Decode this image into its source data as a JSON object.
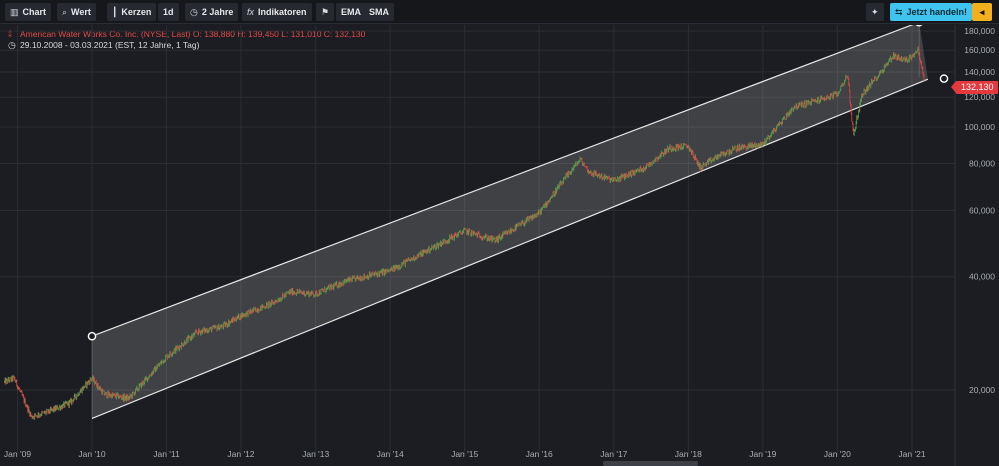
{
  "toolbar": {
    "chart": {
      "label": "Chart",
      "icon": "bar-chart-icon"
    },
    "value": {
      "label": "Wert",
      "icon": "search-icon"
    },
    "candles": {
      "label": "Kerzen",
      "icon": "candlestick-icon"
    },
    "interval": {
      "label": "1d"
    },
    "range": {
      "label": "2 Jahre",
      "icon": "clock-icon"
    },
    "indicators": {
      "label": "Indikatoren",
      "icon": "fx-icon"
    },
    "flag": {
      "icon": "flag-icon"
    },
    "ema": {
      "label": "EMA"
    },
    "sma": {
      "label": "SMA"
    },
    "magic": {
      "icon": "magic-wand-icon"
    },
    "trade": {
      "label": "Jetzt handeln!",
      "icon": "trade-icon"
    },
    "warning": {
      "icon": "warning-icon"
    }
  },
  "legend": {
    "line1": "American Water Works Co. Inc. (NYSE, Last)  O: 138,880  H: 139,450  L: 131,010  C: 132,130",
    "line2": "29.10.2008 - 03.03.2021    (EST, 12 Jahre, 1 Tag)"
  },
  "last_price": "132,130",
  "colors": {
    "background": "#1b1d22",
    "grid": "#2a2d33",
    "candle_up": "#4aa84a",
    "candle_down": "#e04545",
    "channel": "#e8e8e8",
    "badge": "#e4393c",
    "trade_button": "#3ec4ee",
    "warning_button": "#f2b01e"
  },
  "chart_data": {
    "type": "candlestick",
    "yscale": "log",
    "ylim": [
      14000,
      200000
    ],
    "xlim": [
      "2008-10-29",
      "2021-03-03"
    ],
    "y_ticks": [
      20000,
      40000,
      60000,
      80000,
      100000,
      120000,
      140000,
      160000,
      180000
    ],
    "y_tick_labels": [
      "20,000",
      "40,000",
      "60,000",
      "80,000",
      "100,000",
      "120,000",
      "140,000",
      "160,000",
      "180,000"
    ],
    "x_ticks": [
      "2009-01-01",
      "2010-01-01",
      "2011-01-01",
      "2012-01-01",
      "2013-01-01",
      "2014-01-01",
      "2015-01-01",
      "2016-01-01",
      "2017-01-01",
      "2018-01-01",
      "2019-01-01",
      "2020-01-01",
      "2021-01-01"
    ],
    "x_tick_labels": [
      "Jan '09",
      "Jan '10",
      "Jan '11",
      "Jan '12",
      "Jan '13",
      "Jan '14",
      "Jan '15",
      "Jan '16",
      "Jan '17",
      "Jan '18",
      "Jan '19",
      "Jan '20",
      "Jan '21"
    ],
    "series": [
      {
        "name": "American Water Works Co. Inc.",
        "anchors": [
          [
            "2008-10-29",
            21000
          ],
          [
            "2008-12-15",
            21500
          ],
          [
            "2009-03-10",
            17000
          ],
          [
            "2009-06-01",
            17500
          ],
          [
            "2009-09-15",
            18500
          ],
          [
            "2009-12-31",
            21500
          ],
          [
            "2010-03-01",
            19500
          ],
          [
            "2010-07-01",
            19000
          ],
          [
            "2010-12-31",
            24500
          ],
          [
            "2011-06-01",
            28500
          ],
          [
            "2011-10-01",
            29500
          ],
          [
            "2011-12-31",
            31500
          ],
          [
            "2012-06-01",
            34000
          ],
          [
            "2012-09-01",
            36500
          ],
          [
            "2012-12-31",
            36000
          ],
          [
            "2013-06-01",
            39000
          ],
          [
            "2013-12-31",
            41500
          ],
          [
            "2014-06-01",
            46000
          ],
          [
            "2014-12-31",
            53000
          ],
          [
            "2015-06-01",
            50000
          ],
          [
            "2015-12-31",
            59000
          ],
          [
            "2016-06-01",
            76000
          ],
          [
            "2016-07-20",
            82000
          ],
          [
            "2016-09-01",
            76000
          ],
          [
            "2016-12-31",
            72000
          ],
          [
            "2017-06-01",
            78000
          ],
          [
            "2017-10-01",
            88000
          ],
          [
            "2017-12-31",
            89000
          ],
          [
            "2018-03-01",
            78000
          ],
          [
            "2018-06-01",
            84000
          ],
          [
            "2018-09-01",
            88000
          ],
          [
            "2018-12-31",
            90000
          ],
          [
            "2019-06-01",
            113000
          ],
          [
            "2019-12-31",
            122000
          ],
          [
            "2020-02-20",
            138000
          ],
          [
            "2020-03-20",
            95000
          ],
          [
            "2020-05-01",
            122000
          ],
          [
            "2020-08-01",
            140000
          ],
          [
            "2020-10-01",
            155000
          ],
          [
            "2020-12-01",
            150000
          ],
          [
            "2021-02-01",
            160000
          ],
          [
            "2021-03-03",
            132130
          ]
        ]
      }
    ],
    "channel": {
      "upper": [
        [
          "2010-01-01",
          27800
        ],
        [
          "2021-02-05",
          190000
        ]
      ],
      "lower": [
        [
          "2010-01-01",
          16800
        ],
        [
          "2021-03-20",
          134000
        ]
      ]
    }
  }
}
